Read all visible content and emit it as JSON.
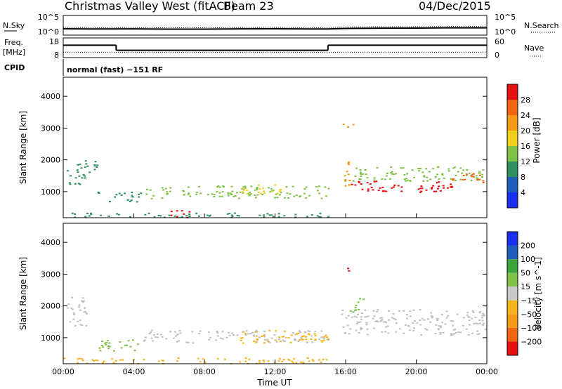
{
  "header": {
    "station": "Christmas Valley West (fitACF)",
    "beam": "Beam 23",
    "date": "04/Dec/2015"
  },
  "mode_text": "normal (fast) −151 RF",
  "labels": {
    "nsky": "N.Sky",
    "freq_line1": "Freq.",
    "freq_line2": "[MHz]",
    "cpid": "CPID",
    "nsearch": "N.Search",
    "nave": "Nave"
  },
  "colors": {
    "power": [
      "#1a2ff0",
      "#1f5bb8",
      "#2f8f5f",
      "#7fc24a",
      "#f0d21e",
      "#f59a15",
      "#f26510",
      "#e61010"
    ],
    "velocity": [
      "#e61010",
      "#f26510",
      "#f59a15",
      "#f5b41e",
      "#c8c8c8",
      "#7fc24a",
      "#3aa33a",
      "#1f5bb8",
      "#1a2ff0"
    ],
    "ground_scatter": "#c0c0bc"
  },
  "chart_data": [
    {
      "type": "line",
      "name": "noise",
      "ylabel_left": "N.Sky",
      "ylabel_right": "N.Search",
      "left_ticks": [
        "10^5",
        "10^0"
      ],
      "right_ticks": [
        "10^5",
        "10^0"
      ],
      "x": [
        0,
        2,
        4,
        6,
        8,
        10,
        12,
        14,
        15,
        16,
        18,
        20,
        22,
        24
      ],
      "values": [
        10,
        8,
        9,
        7,
        7,
        9,
        10,
        8,
        8,
        15,
        20,
        22,
        30,
        28
      ]
    },
    {
      "type": "line",
      "name": "freq",
      "ylabel": "Freq. [MHz]",
      "left_ticks": [
        "18",
        "8"
      ],
      "right_ticks": [
        "60",
        "0"
      ],
      "freq_steps": [
        {
          "from": 0,
          "to": 3,
          "value": 14.5
        },
        {
          "from": 3,
          "to": 15,
          "value": 11.5
        },
        {
          "from": 15,
          "to": 24,
          "value": 14.5
        }
      ],
      "nave": 14
    },
    {
      "type": "heatmap",
      "name": "power",
      "ylabel": "Slant Range [km]",
      "colorbar_label": "Power [dB]",
      "colorbar_ticks": [
        "28",
        "24",
        "20",
        "16",
        "12",
        "8",
        "4"
      ],
      "colorbar_values": [
        28,
        24,
        20,
        16,
        12,
        8,
        4
      ],
      "ylim": [
        180,
        4600
      ],
      "yticks": [
        "1000",
        "2000",
        "3000",
        "4000"
      ],
      "ytick_values": [
        1000,
        2000,
        3000,
        4000
      ],
      "bands": [
        {
          "x": [
            0.2,
            1.3
          ],
          "lo": 1250,
          "hi": 2000,
          "value": 9
        },
        {
          "x": [
            1.3,
            1.9
          ],
          "lo": 1550,
          "hi": 2100,
          "value": 8
        },
        {
          "x": [
            1.9,
            4.5
          ],
          "lo": 700,
          "hi": 1000,
          "value": 9
        },
        {
          "x": [
            4.5,
            15.0
          ],
          "lo": 800,
          "hi": 1200,
          "value": 13
        },
        {
          "x": [
            10.0,
            12.5
          ],
          "lo": 950,
          "hi": 1250,
          "value": 16
        },
        {
          "x": [
            6.0,
            7.5
          ],
          "lo": 200,
          "hi": 420,
          "value": 28
        },
        {
          "x": [
            0,
            15
          ],
          "lo": 200,
          "hi": 360,
          "value": 10
        },
        {
          "x": [
            15.8,
            16.2
          ],
          "lo": 1100,
          "hi": 2300,
          "value": 22
        },
        {
          "x": [
            16.2,
            22
          ],
          "lo": 1000,
          "hi": 1350,
          "value": 28
        },
        {
          "x": [
            16.2,
            24
          ],
          "lo": 1350,
          "hi": 1800,
          "value": 14
        },
        {
          "x": [
            22,
            24
          ],
          "lo": 1300,
          "hi": 1600,
          "value": 25
        },
        {
          "x": [
            15.6,
            16.4
          ],
          "lo": 3050,
          "hi": 3200,
          "value": 20
        }
      ]
    },
    {
      "type": "heatmap",
      "name": "velocity",
      "ylabel": "Slant Range [km]",
      "colorbar_label": "Velocity [m s^-1]",
      "colorbar_ticks": [
        "200",
        "100",
        "50",
        "15",
        "−15",
        "−50",
        "−100",
        "−200"
      ],
      "colorbar_values": [
        200,
        100,
        50,
        15,
        -15,
        -50,
        -100,
        -200
      ],
      "ylim": [
        180,
        4600
      ],
      "yticks": [
        "1000",
        "2000",
        "3000",
        "4000"
      ],
      "ytick_values": [
        1000,
        2000,
        3000,
        4000
      ],
      "bands": [
        {
          "x": [
            0.2,
            1.3
          ],
          "lo": 1300,
          "hi": 2300,
          "value": 0,
          "gs": true
        },
        {
          "x": [
            1.9,
            4.5
          ],
          "lo": 600,
          "hi": 950,
          "value": 30
        },
        {
          "x": [
            4.5,
            15.0
          ],
          "lo": 850,
          "hi": 1250,
          "value": 0,
          "gs": true
        },
        {
          "x": [
            10.0,
            15.0
          ],
          "lo": 850,
          "hi": 1250,
          "value": -40
        },
        {
          "x": [
            0,
            15
          ],
          "lo": 200,
          "hi": 380,
          "value": -30
        },
        {
          "x": [
            15.7,
            24
          ],
          "lo": 1100,
          "hi": 1900,
          "value": 0,
          "gs": true
        },
        {
          "x": [
            15.8,
            16.3
          ],
          "lo": 3100,
          "hi": 3250,
          "value": -200
        },
        {
          "x": [
            16.2,
            17.0
          ],
          "lo": 1800,
          "hi": 2300,
          "value": 30
        }
      ]
    }
  ],
  "xaxis": {
    "label": "Time UT",
    "ticks": [
      "00:00",
      "04:00",
      "08:00",
      "12:00",
      "16:00",
      "20:00",
      "00:00"
    ],
    "tick_values": [
      0,
      4,
      8,
      12,
      16,
      20,
      24
    ],
    "range": [
      0,
      24
    ]
  }
}
